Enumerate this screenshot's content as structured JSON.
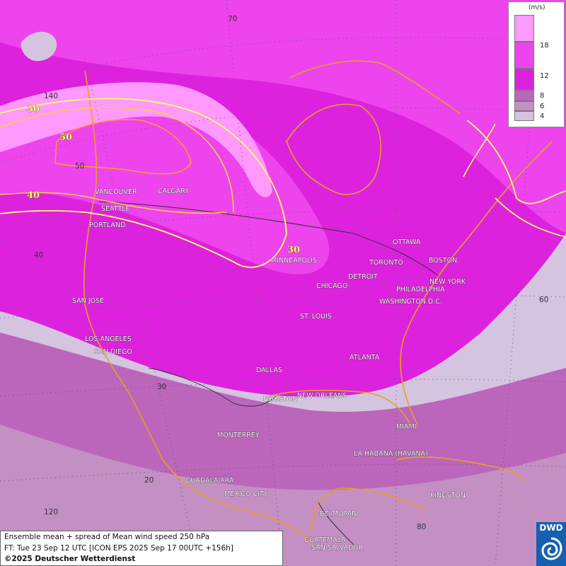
{
  "legend": {
    "unit": "(m/s)",
    "entries": [
      {
        "label": "",
        "color": "#ff99ff"
      },
      {
        "label": "18",
        "color": "#ee44ee"
      },
      {
        "label": "12",
        "color": "#dd22dd"
      },
      {
        "label": "8",
        "color": "#bb66bb"
      },
      {
        "label": "6",
        "color": "#c490c4"
      },
      {
        "label": "4",
        "color": "#d4c4e0"
      }
    ]
  },
  "info": {
    "line1": "Ensemble mean + spread of Mean wind speed 250 hPa",
    "line2": "FT: Tue 23 Sep 12 UTC [ICON EPS 2025 Sep 17 00UTC +156h]",
    "line3": "©2025 Deutscher Wetterdienst"
  },
  "logo": {
    "text": "DWD"
  },
  "contour_labels": [
    "30",
    "50",
    "40",
    "30"
  ],
  "grid_labels": [
    "70",
    "140",
    "50",
    "40",
    "30",
    "20",
    "120",
    "60",
    "80"
  ],
  "cities": [
    "VANCOUVER",
    "CALGARY",
    "SEATTLE",
    "PORTLAND",
    "MINNEAPOLIS",
    "OTTAWA",
    "TORONTO",
    "BOSTON",
    "DETROIT",
    "CHICAGO",
    "NEW YORK",
    "PHILADELPHIA",
    "WASHINGTON D.C.",
    "SAN JOSE",
    "ST. LOUIS",
    "LOS ANGELES",
    "SAN DIEGO",
    "ATLANTA",
    "DALLAS",
    "HOUSTON",
    "NEW ORLEANS",
    "MIAMI",
    "MONTERREY",
    "LA HABANA (HAVANA)",
    "GUADALAJARA",
    "MEXICO CITY",
    "KINGSTON",
    "BELMOPAN",
    "GUATEMALA",
    "SAN SALVADOR"
  ],
  "colors": {
    "jet_core": "#ff99ff",
    "magenta": "#ee44ee",
    "isotach": "#ffff66",
    "coastline": "#e8a020"
  }
}
